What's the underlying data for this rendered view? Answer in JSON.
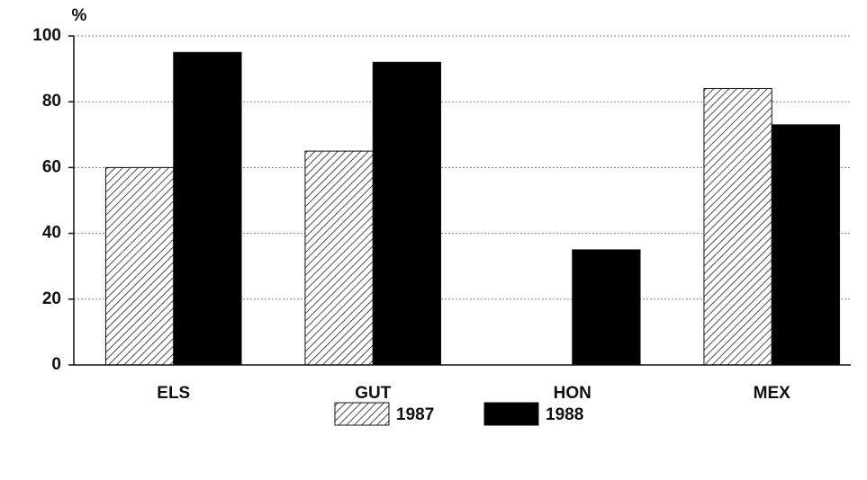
{
  "chart_data": {
    "type": "bar",
    "y_label": "%",
    "categories": [
      "ELS",
      "GUT",
      "HON",
      "MEX"
    ],
    "series": [
      {
        "name": "1987",
        "color": "#000000",
        "pattern": "hatch",
        "values": [
          60,
          65,
          null,
          84
        ]
      },
      {
        "name": "1988",
        "color": "#000000",
        "pattern": "solid",
        "values": [
          95,
          92,
          35,
          73
        ]
      }
    ],
    "ylim": [
      0,
      100
    ],
    "yticks": [
      0,
      20,
      40,
      60,
      80,
      100
    ],
    "grid": true,
    "legend": "bottom"
  }
}
